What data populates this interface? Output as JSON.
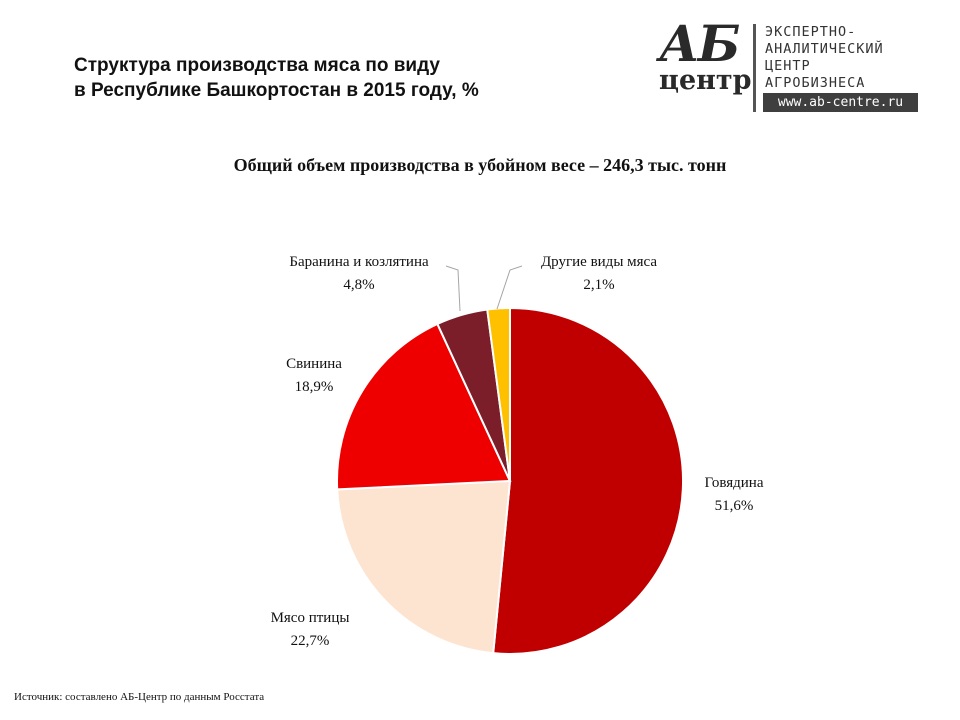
{
  "header": {
    "title_line1": "Структура производства мяса по виду",
    "title_line2": "в Республике Башкортостан в 2015 году, %"
  },
  "logo": {
    "mark_top": "АБ",
    "mark_bottom": "центр",
    "lines": [
      "ЭКСПЕРТНО-",
      "АНАЛИТИЧЕСКИЙ",
      "ЦЕНТР",
      "АГРОБИЗНЕСА"
    ],
    "url": "www.ab-centre.ru"
  },
  "chart_data": {
    "type": "pie",
    "title": "Общий объем производства  в убойном весе – 246,3 тыс. тонн",
    "start": "12 o'clock",
    "direction": "clockwise",
    "slices": [
      {
        "name": "Говядина",
        "value": 51.6,
        "label": "51,6%",
        "color": "#C00000"
      },
      {
        "name": "Мясо птицы",
        "value": 22.7,
        "label": "22,7%",
        "color": "#FDE4D0"
      },
      {
        "name": "Свинина",
        "value": 18.9,
        "label": "18,9%",
        "color": "#EE0000"
      },
      {
        "name": "Баранина и козлятина",
        "value": 4.8,
        "label": "4,8%",
        "color": "#7B1E2A"
      },
      {
        "name": "Другие виды мяса",
        "value": 2.1,
        "label": "2,1%",
        "color": "#FFC000"
      }
    ]
  },
  "footer": {
    "source": "Источник:  составлено АБ-Центр  по данным Росстата"
  }
}
